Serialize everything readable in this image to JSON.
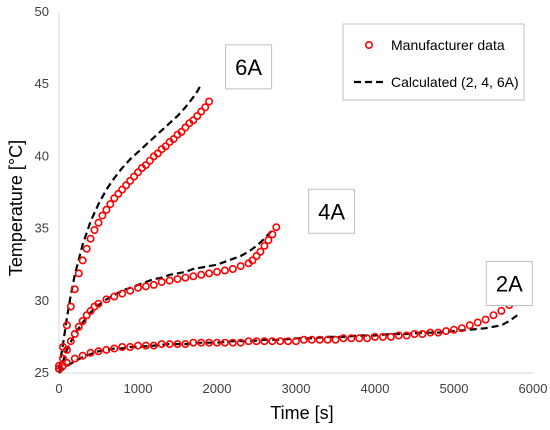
{
  "chart_data": {
    "type": "scatter",
    "xlabel": "Time [s]",
    "ylabel": "Temperature [°C]",
    "xlim": [
      0,
      6000
    ],
    "ylim": [
      25,
      50
    ],
    "xticks": [
      0,
      1000,
      2000,
      3000,
      4000,
      5000,
      6000
    ],
    "yticks": [
      25,
      30,
      35,
      40,
      45,
      50
    ],
    "xtick_labels": [
      "0",
      "1000",
      "2000",
      "3000",
      "4000",
      "5000",
      "6000"
    ],
    "ytick_labels": [
      "25",
      "30",
      "35",
      "40",
      "45",
      "50"
    ],
    "grid": false,
    "legend_position": "top-right",
    "legend": [
      {
        "label": "Manufacturer data",
        "style": "marker",
        "color": "#ff0000"
      },
      {
        "label": "Calculated (2, 4, 6A)",
        "style": "dashed",
        "color": "#000000"
      }
    ],
    "annotations": [
      {
        "text": "6A",
        "x": 2400,
        "y": 46.2
      },
      {
        "text": "4A",
        "x": 3450,
        "y": 36.2
      },
      {
        "text": "2A",
        "x": 5700,
        "y": 31.2
      }
    ],
    "series": [
      {
        "name": "Manufacturer data",
        "kind": "scatter",
        "color": "#ff0000",
        "groups": [
          {
            "current": "6A",
            "x": [
              0,
              50,
              100,
              150,
              200,
              250,
              300,
              350,
              400,
              450,
              500,
              550,
              600,
              650,
              700,
              750,
              800,
              850,
              900,
              950,
              1000,
              1050,
              1100,
              1150,
              1200,
              1250,
              1300,
              1350,
              1400,
              1450,
              1500,
              1550,
              1600,
              1650,
              1700,
              1750,
              1800,
              1850,
              1900
            ],
            "y": [
              25.5,
              26.8,
              28.3,
              29.6,
              30.8,
              31.9,
              32.8,
              33.6,
              34.3,
              34.9,
              35.4,
              35.9,
              36.3,
              36.7,
              37.1,
              37.4,
              37.7,
              38.0,
              38.3,
              38.6,
              38.9,
              39.2,
              39.4,
              39.7,
              40.0,
              40.2,
              40.5,
              40.7,
              41.0,
              41.2,
              41.5,
              41.7,
              42.0,
              42.3,
              42.5,
              42.8,
              43.1,
              43.4,
              43.8
            ]
          },
          {
            "current": "4A",
            "x": [
              0,
              50,
              100,
              150,
              200,
              250,
              300,
              350,
              400,
              450,
              500,
              600,
              700,
              800,
              900,
              1000,
              1100,
              1200,
              1300,
              1400,
              1500,
              1600,
              1700,
              1800,
              1900,
              2000,
              2100,
              2200,
              2300,
              2400,
              2450,
              2500,
              2550,
              2600,
              2650,
              2700,
              2750
            ],
            "y": [
              25.3,
              26.0,
              26.6,
              27.2,
              27.7,
              28.2,
              28.6,
              29.0,
              29.3,
              29.6,
              29.8,
              30.1,
              30.3,
              30.5,
              30.7,
              30.9,
              31.0,
              31.1,
              31.3,
              31.4,
              31.5,
              31.6,
              31.7,
              31.8,
              31.9,
              32.0,
              32.1,
              32.2,
              32.4,
              32.6,
              32.8,
              33.1,
              33.4,
              33.8,
              34.2,
              34.6,
              35.1
            ]
          },
          {
            "current": "2A",
            "x": [
              0,
              50,
              100,
              200,
              300,
              400,
              500,
              600,
              700,
              800,
              900,
              1000,
              1100,
              1200,
              1300,
              1400,
              1500,
              1600,
              1700,
              1800,
              1900,
              2000,
              2100,
              2200,
              2300,
              2400,
              2500,
              2600,
              2700,
              2800,
              2900,
              3000,
              3100,
              3200,
              3300,
              3400,
              3500,
              3600,
              3700,
              3800,
              3900,
              4000,
              4100,
              4200,
              4300,
              4400,
              4500,
              4600,
              4700,
              4800,
              4900,
              5000,
              5100,
              5200,
              5300,
              5400,
              5500,
              5600,
              5700,
              5800
            ],
            "y": [
              25.3,
              25.5,
              25.7,
              26.0,
              26.2,
              26.4,
              26.5,
              26.6,
              26.7,
              26.8,
              26.8,
              26.9,
              26.9,
              26.9,
              27.0,
              27.0,
              27.0,
              27.0,
              27.1,
              27.1,
              27.1,
              27.1,
              27.1,
              27.1,
              27.1,
              27.2,
              27.2,
              27.2,
              27.2,
              27.2,
              27.2,
              27.2,
              27.3,
              27.3,
              27.3,
              27.3,
              27.3,
              27.4,
              27.4,
              27.4,
              27.4,
              27.5,
              27.5,
              27.5,
              27.6,
              27.6,
              27.7,
              27.7,
              27.8,
              27.8,
              27.9,
              28.0,
              28.1,
              28.3,
              28.5,
              28.7,
              29.0,
              29.3,
              29.7,
              30.1
            ]
          }
        ]
      },
      {
        "name": "Calculated (2, 4, 6A)",
        "kind": "line",
        "style": "dashed",
        "color": "#000000",
        "groups": [
          {
            "current": "6A",
            "x": [
              0,
              50,
              100,
              150,
              200,
              300,
              400,
              500,
              600,
              700,
              800,
              900,
              1000,
              1100,
              1200,
              1300,
              1400,
              1500,
              1600,
              1700,
              1750,
              1800
            ],
            "y": [
              25.3,
              27.0,
              28.8,
              30.4,
              31.8,
              33.9,
              35.5,
              36.7,
              37.7,
              38.5,
              39.2,
              39.8,
              40.3,
              40.8,
              41.3,
              41.8,
              42.3,
              42.8,
              43.4,
              44.1,
              44.5,
              45.0
            ]
          },
          {
            "current": "4A",
            "x": [
              0,
              50,
              100,
              200,
              300,
              400,
              500,
              600,
              700,
              800,
              900,
              1000,
              1100,
              1200,
              1300,
              1400,
              1500,
              1600,
              1700,
              1800,
              1900,
              2000,
              2100,
              2200,
              2300,
              2400,
              2500,
              2600,
              2700
            ],
            "y": [
              25.0,
              25.8,
              26.6,
              27.7,
              28.5,
              29.2,
              29.7,
              30.1,
              30.4,
              30.7,
              30.9,
              31.1,
              31.3,
              31.5,
              31.6,
              31.8,
              31.9,
              32.0,
              32.2,
              32.3,
              32.4,
              32.5,
              32.7,
              32.9,
              33.1,
              33.4,
              33.8,
              34.3,
              34.9
            ]
          },
          {
            "current": "2A",
            "x": [
              0,
              100,
              200,
              300,
              400,
              500,
              600,
              700,
              800,
              900,
              1000,
              1200,
              1400,
              1600,
              1800,
              2000,
              2200,
              2400,
              2600,
              2800,
              3000,
              3200,
              3400,
              3600,
              3800,
              4000,
              4200,
              4400,
              4600,
              4800,
              5000,
              5200,
              5400,
              5600,
              5700,
              5800
            ],
            "y": [
              25.0,
              25.5,
              25.8,
              26.1,
              26.3,
              26.5,
              26.6,
              26.7,
              26.7,
              26.8,
              26.8,
              26.9,
              27.0,
              27.0,
              27.1,
              27.1,
              27.2,
              27.2,
              27.3,
              27.3,
              27.4,
              27.4,
              27.5,
              27.5,
              27.6,
              27.6,
              27.7,
              27.7,
              27.8,
              27.8,
              27.9,
              28.0,
              28.1,
              28.3,
              28.6,
              29.0
            ]
          }
        ]
      }
    ]
  }
}
